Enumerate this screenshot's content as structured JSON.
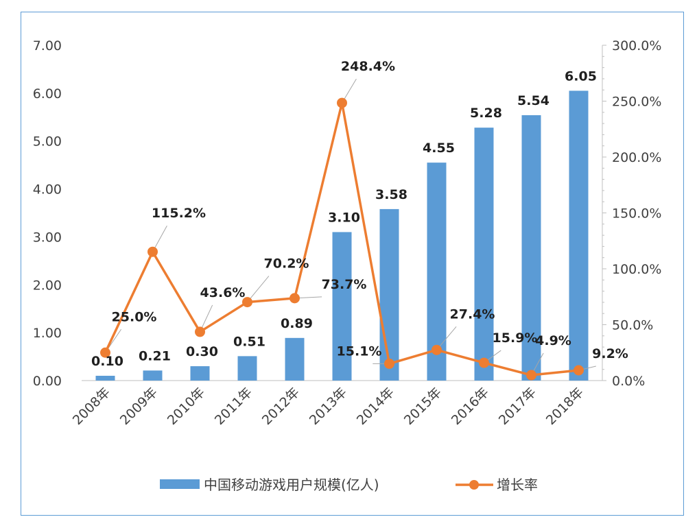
{
  "chart_data": {
    "type": "bar+line",
    "title": "",
    "categories": [
      "2008年",
      "2009年",
      "2010年",
      "2011年",
      "2012年",
      "2013年",
      "2014年",
      "2015年",
      "2016年",
      "2017年",
      "2018年"
    ],
    "series": [
      {
        "name": "中国移动游戏用户规模(亿人)",
        "type": "bar",
        "axis": "left",
        "color": "#5b9bd5",
        "values": [
          0.1,
          0.21,
          0.3,
          0.51,
          0.89,
          3.1,
          3.58,
          4.55,
          5.28,
          5.54,
          6.05
        ],
        "labels": [
          "0.10",
          "0.21",
          "0.30",
          "0.51",
          "0.89",
          "3.10",
          "3.58",
          "4.55",
          "5.28",
          "5.54",
          "6.05"
        ]
      },
      {
        "name": "增长率",
        "type": "line",
        "axis": "right",
        "color": "#ed7d31",
        "values": [
          25.0,
          115.2,
          43.6,
          70.2,
          73.7,
          248.4,
          15.1,
          27.4,
          15.9,
          4.9,
          9.2
        ],
        "labels": [
          "25.0%",
          "115.2%",
          "43.6%",
          "70.2%",
          "73.7%",
          "248.4%",
          "15.1%",
          "27.4%",
          "15.9%",
          "4.9%",
          "9.2%"
        ]
      }
    ],
    "y_left": {
      "min": 0,
      "max": 7,
      "step": 1,
      "ticks": [
        "0.00",
        "1.00",
        "2.00",
        "3.00",
        "4.00",
        "5.00",
        "6.00",
        "7.00"
      ]
    },
    "y_right": {
      "min": 0,
      "max": 300,
      "step": 50,
      "ticks": [
        "0.0%",
        "50.0%",
        "100.0%",
        "150.0%",
        "200.0%",
        "250.0%",
        "300.0%"
      ]
    },
    "grid": false,
    "legend": "bottom"
  }
}
